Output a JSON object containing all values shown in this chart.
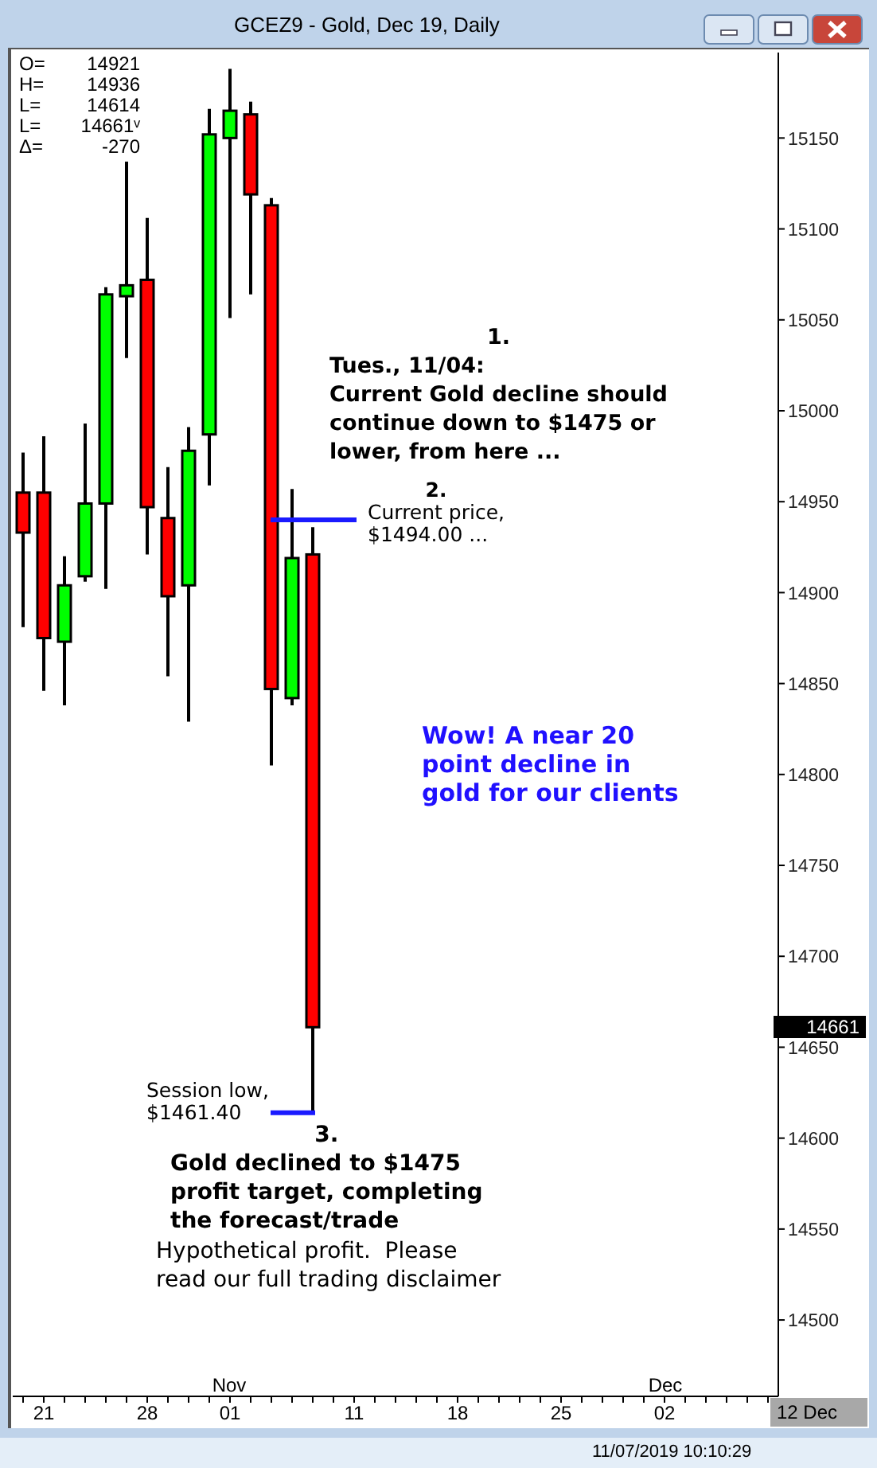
{
  "chart_data": {
    "type": "candlestick",
    "title": "GCEZ9 - Gold, Dec 19, Daily",
    "categories": [
      null,
      "21",
      null,
      null,
      null,
      null,
      "28",
      null,
      null,
      null,
      "01",
      null,
      null,
      null,
      null,
      null,
      "11",
      null,
      null,
      null,
      null,
      "18",
      null,
      null,
      null,
      null,
      "25",
      null,
      null,
      null,
      null,
      "02",
      null,
      null,
      null,
      null,
      null
    ],
    "ohlc": [
      [
        14955,
        14977,
        14881,
        14933
      ],
      [
        14955,
        14986,
        14846,
        14875
      ],
      [
        14873,
        14920,
        14838,
        14904
      ],
      [
        14909,
        14993,
        14906,
        14949
      ],
      [
        14949,
        15068,
        14902,
        15064
      ],
      [
        15063,
        15137,
        15029,
        15069
      ],
      [
        15072,
        15106,
        14921,
        14947
      ],
      [
        14941,
        14969,
        14854,
        14898
      ],
      [
        14904,
        14991,
        14829,
        14978
      ],
      [
        14987,
        15166,
        14959,
        15152
      ],
      [
        15150,
        15188,
        15051,
        15165
      ],
      [
        15163,
        15170,
        15064,
        15119
      ],
      [
        15113,
        15117,
        14805,
        14847
      ],
      [
        14842,
        14957,
        14838,
        14919
      ],
      [
        14921,
        14936,
        14614,
        14661
      ],
      null,
      null,
      null,
      null,
      null,
      null,
      null,
      null,
      null,
      null,
      null,
      null,
      null,
      null,
      null,
      null,
      null,
      null,
      null,
      null,
      null,
      null
    ],
    "colors": [
      "#ff0000",
      "#ff0000",
      "#00ff00",
      "#00ff00",
      "#00ff00",
      "#00ff00",
      "#ff0000",
      "#ff0000",
      "#00ff00",
      "#00ff00",
      "#00ff00",
      "#ff0000",
      "#ff0000",
      "#00ff00",
      "#ff0000",
      null,
      null,
      null,
      null,
      null,
      null,
      null,
      null,
      null,
      null,
      null,
      null,
      null,
      null,
      null,
      null,
      null,
      null,
      null,
      null,
      null,
      null
    ],
    "ylim": [
      14458,
      15197
    ],
    "yticks": [
      14500,
      14550,
      14600,
      14650,
      14700,
      14750,
      14800,
      14850,
      14900,
      14950,
      15000,
      15050,
      15100,
      15150
    ],
    "annotations": [
      "O=  14921",
      "H=  14936",
      "L=  14614",
      "L=  14661ᵛ",
      "Δ=  -270",
      "1.\nTues., 11/04:\nCurrent Gold decline should\ncontinue down to $1475 or\nlower, from here ...",
      "3.\nGold declined to $1475\nprofit target, completing\nthe forecast/trade",
      "Wow! A near 20\npoint decline in\ngold for our clients",
      "Hypothetical profit.  Please\nread our full trading disclaimer",
      "Nov",
      "Dec",
      "12 Dec",
      "14661",
      "11/07/2019 10:10:29"
    ],
    "ref_lines": [
      {
        "axis": "y",
        "value": 14940,
        "label": "2.\nCurrent price,\n$1494.00 ...",
        "color": "#1a1aff"
      },
      {
        "axis": "y",
        "value": 14614,
        "label": "Session low,\n$1461.40",
        "color": "#1a1aff"
      }
    ]
  }
}
